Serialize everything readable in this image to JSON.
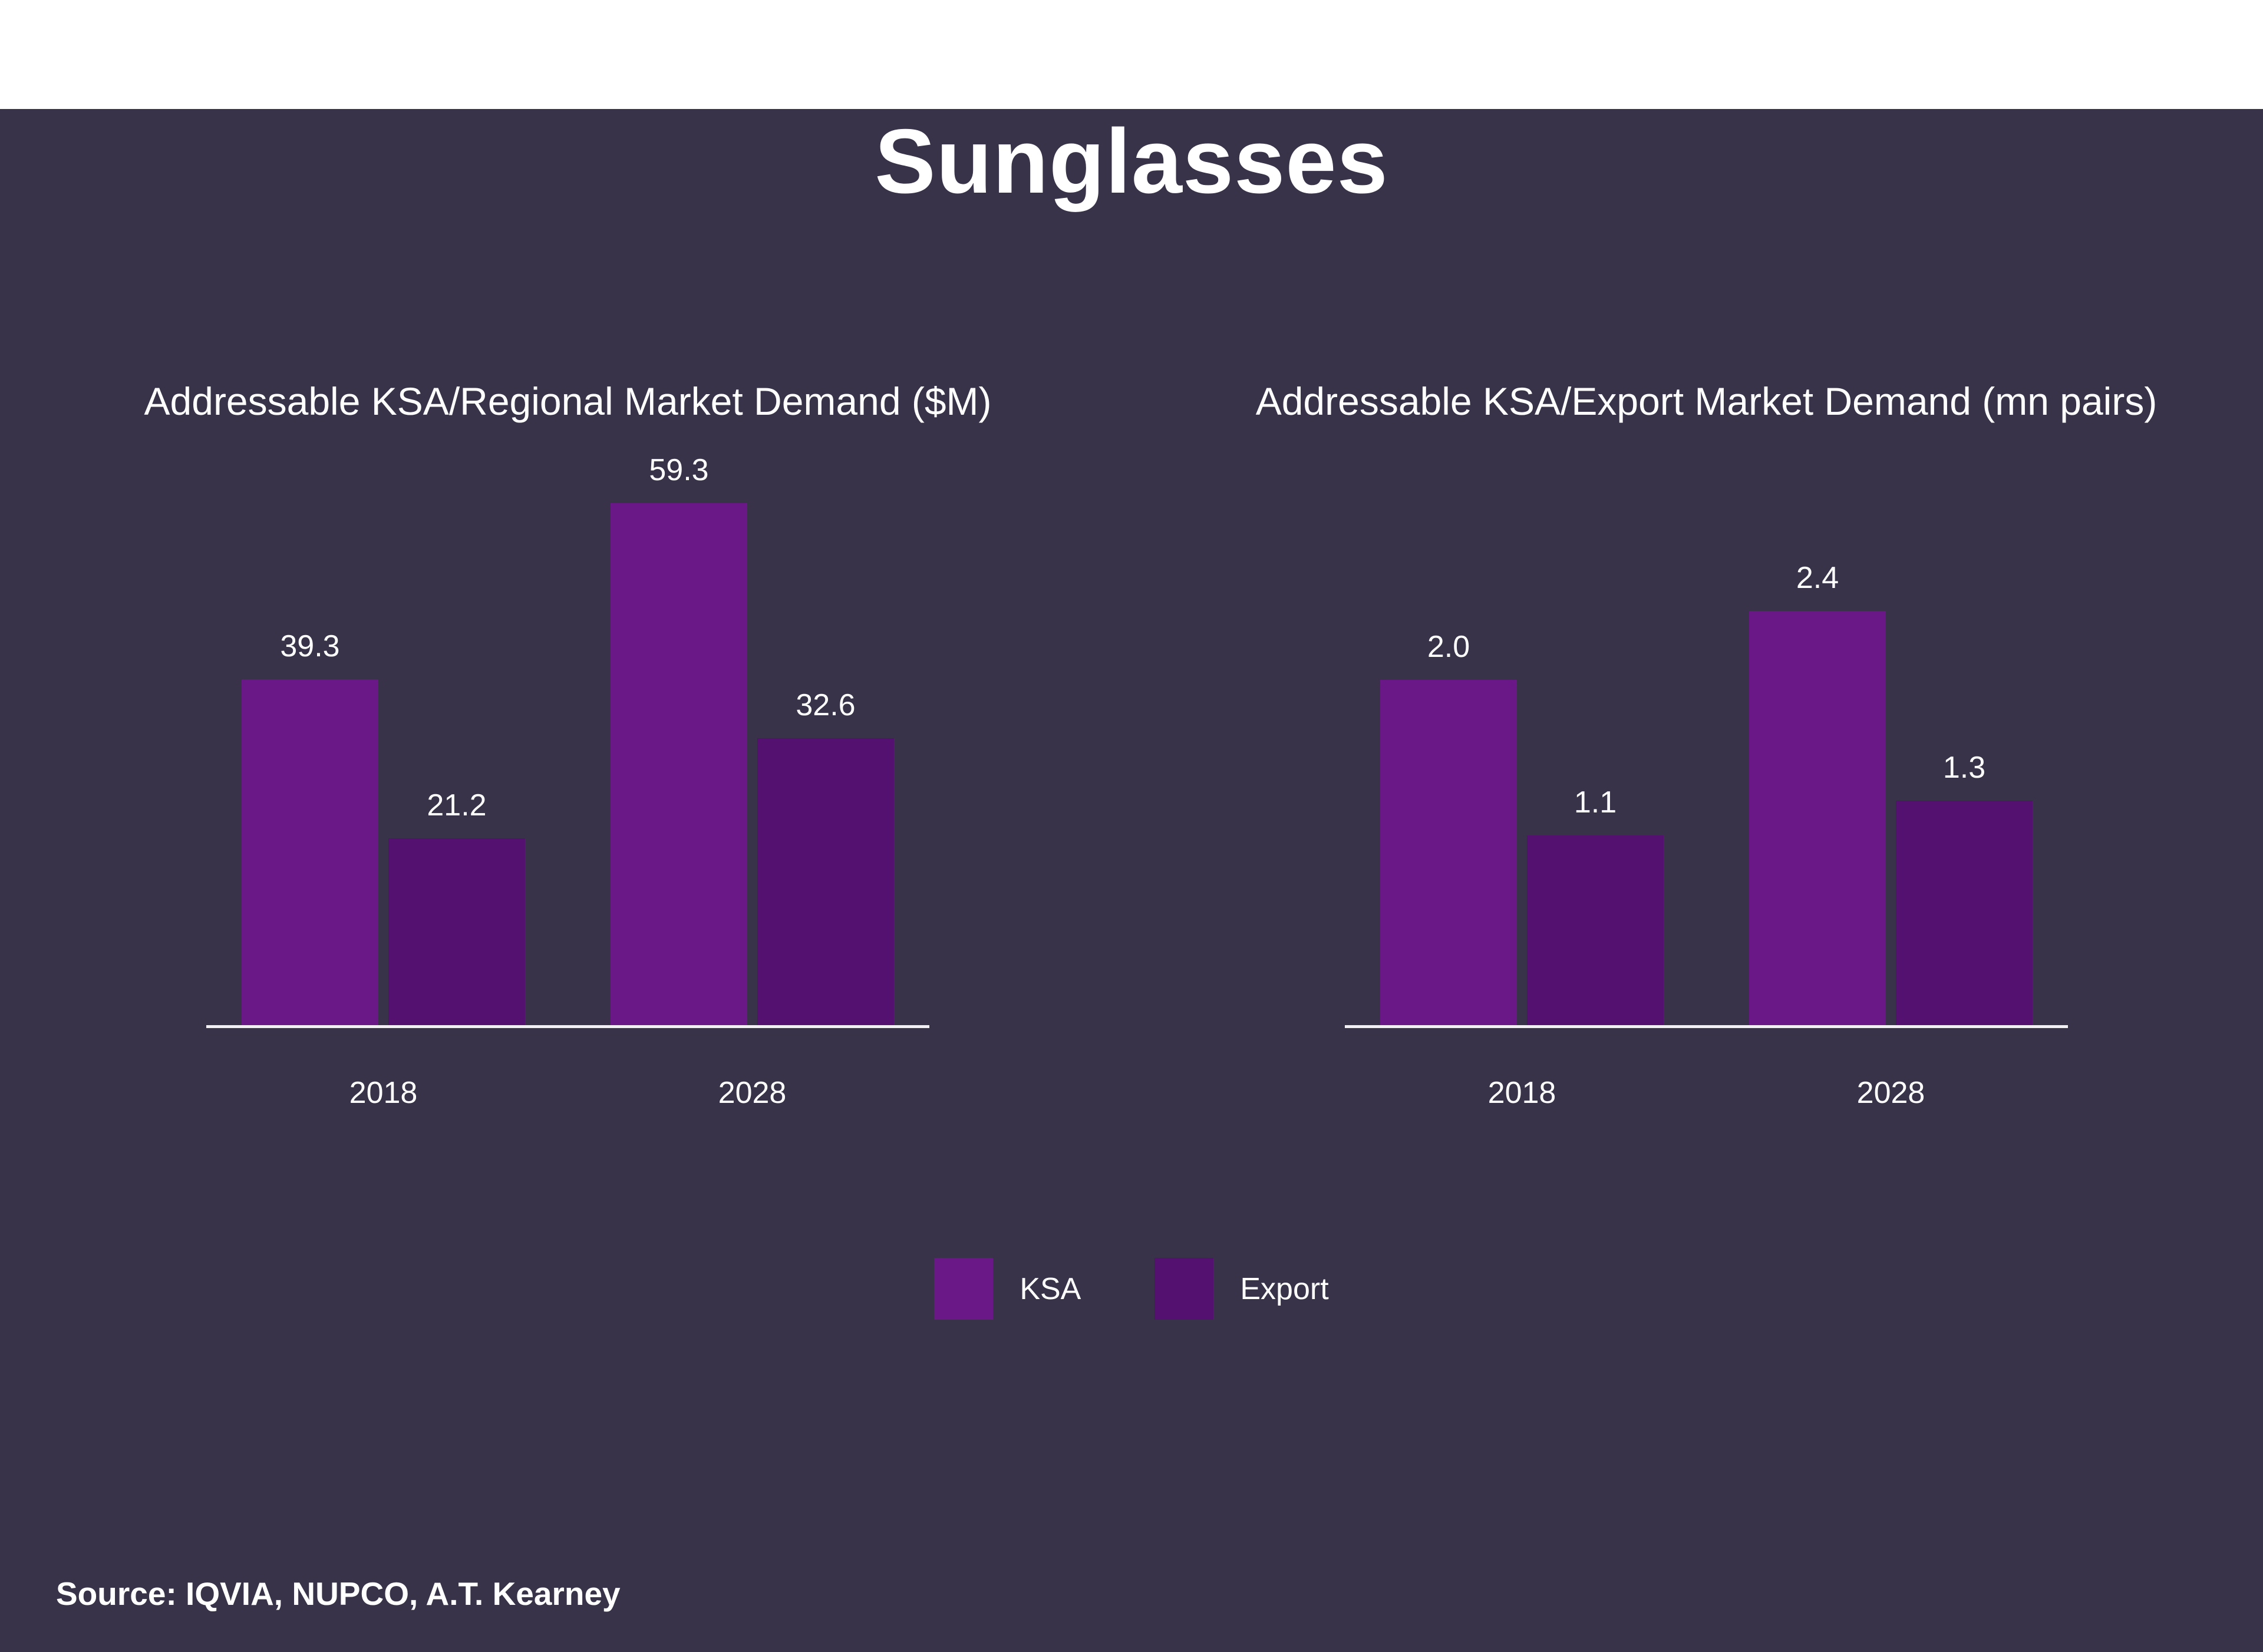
{
  "page": {
    "title": "Sunglasses",
    "source": "Source: IQVIA, NUPCO, A.T. Kearney",
    "background_color": "#393349",
    "text_color": "#FFFFFF",
    "axis_color": "#F2F0F4"
  },
  "legend": {
    "items": [
      {
        "label": "KSA",
        "color": "#6A1787"
      },
      {
        "label": "Export",
        "color": "#55116F"
      }
    ]
  },
  "chart_data": [
    {
      "type": "bar",
      "title": "Addressable KSA/Regional Market Demand ($M)",
      "categories": [
        "2018",
        "2028"
      ],
      "series": [
        {
          "name": "KSA",
          "color": "#6A1787",
          "values": [
            39.3,
            59.3
          ],
          "labels": [
            "39.3",
            "59.3"
          ]
        },
        {
          "name": "Export",
          "color": "#55116F",
          "values": [
            21.2,
            32.6
          ],
          "labels": [
            "21.2",
            "32.6"
          ]
        }
      ],
      "xlabel": "",
      "ylabel": "",
      "ylim": [
        0,
        70
      ],
      "grid": false,
      "y_axis_visible": false,
      "data_labels": true,
      "legend_position": "bottom-center-shared"
    },
    {
      "type": "bar",
      "title": "Addressable KSA/Export Market Demand (mn pairs)",
      "categories": [
        "2018",
        "2028"
      ],
      "series": [
        {
          "name": "KSA",
          "color": "#6A1787",
          "values": [
            2.0,
            2.4
          ],
          "labels": [
            "2.0",
            "2.4"
          ]
        },
        {
          "name": "Export",
          "color": "#55116F",
          "values": [
            1.1,
            1.3
          ],
          "labels": [
            "1.1",
            "1.3"
          ]
        }
      ],
      "xlabel": "",
      "ylabel": "",
      "ylim": [
        0,
        3
      ],
      "grid": false,
      "y_axis_visible": false,
      "data_labels": true,
      "legend_position": "bottom-center-shared"
    }
  ]
}
